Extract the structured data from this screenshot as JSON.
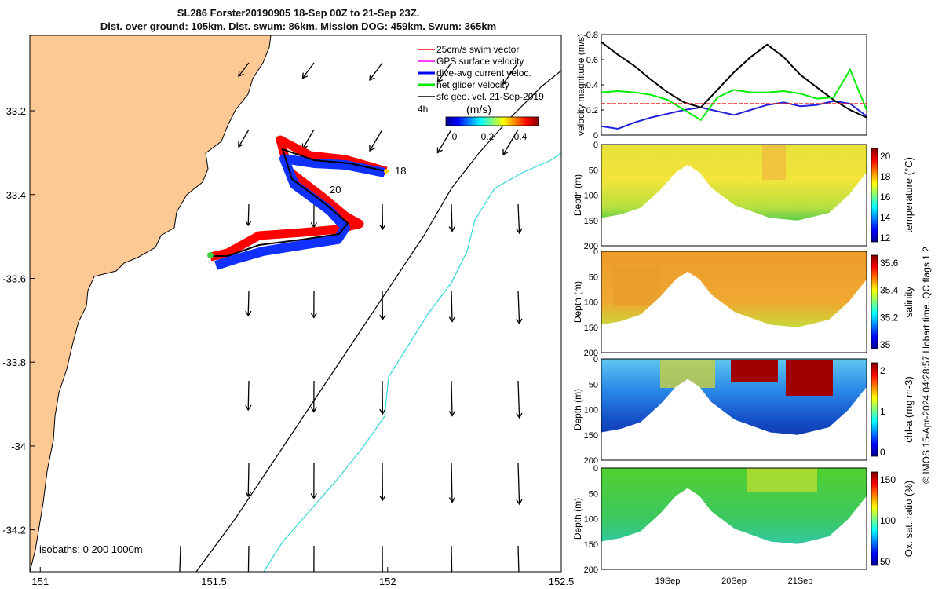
{
  "title": {
    "line1": "SL286 Forster20190905 18-Sep 00Z to 21-Sep 23Z.",
    "line2": "Dist. over ground: 105km. Dist. swum: 86km. Mission DOG: 459km. Swum: 365km"
  },
  "colors": {
    "land": "#fcc995",
    "coast": "#000000",
    "isobath_200": "#000000",
    "isobath_1000": "#33d6dc",
    "swim": "#ff0000",
    "gps": "#ff00ff",
    "current": "#0000ff",
    "net": "#00ee00",
    "track": "#000000"
  },
  "map": {
    "legend": [
      {
        "label": "25cm/s swim vector",
        "color": "#ff0000"
      },
      {
        "label": "GPS surface velocity",
        "color": "#ff00ff"
      },
      {
        "label": "dive-avg current veloc.",
        "color": "#0000ff"
      },
      {
        "label": "net glider velocity",
        "color": "#00ee00"
      },
      {
        "label": "sfc geo. vel. 21-Sep-2019",
        "color": "#000000"
      }
    ],
    "legend_extra": "4h",
    "colorbar_label": "(m/s)",
    "colorbar_ticks": [
      "0",
      "0.2",
      "0.4"
    ],
    "isobath_label": "isobaths: 0   200   1000m",
    "track_labels": [
      "18",
      "20"
    ],
    "xlim": [
      150.97,
      152.5
    ],
    "ylim": [
      -34.3,
      -33.02
    ]
  },
  "chart_data": [
    {
      "type": "scatter",
      "title": "map",
      "x_ticks": [
        151,
        151.5,
        152,
        152.5
      ],
      "x_tick_labels": [
        "151",
        "151.5",
        "152",
        "152.5"
      ],
      "y_ticks": [
        -33.2,
        -33.4,
        -33.6,
        -33.8,
        -34,
        -34.2
      ],
      "y_tick_labels": [
        "-33.2",
        "-33.4",
        "-33.6",
        "-33.8",
        "-34",
        "-34.2"
      ],
      "track": [
        [
          152.0,
          -33.34
        ],
        [
          151.92,
          -33.32
        ],
        [
          151.85,
          -33.31
        ],
        [
          151.78,
          -33.31
        ],
        [
          151.73,
          -33.32
        ],
        [
          151.76,
          -33.38
        ],
        [
          151.82,
          -33.43
        ],
        [
          151.9,
          -33.48
        ],
        [
          151.93,
          -33.5
        ],
        [
          151.85,
          -33.52
        ],
        [
          151.72,
          -33.53
        ],
        [
          151.6,
          -33.56
        ],
        [
          151.53,
          -33.56
        ]
      ]
    },
    {
      "type": "line",
      "title": "velocity",
      "ylabel": "velocity magnitude (m/s)",
      "ylim": [
        0,
        0.8
      ],
      "y_ticks": [
        "0",
        "0.2",
        "0.4",
        "0.6",
        "0.8"
      ],
      "x": [
        18.0,
        18.25,
        18.5,
        18.75,
        19.0,
        19.25,
        19.5,
        19.75,
        20.0,
        20.25,
        20.5,
        20.75,
        21.0,
        21.25,
        21.5,
        21.75,
        22.0
      ],
      "series": [
        {
          "name": "current",
          "color": "#2222dd",
          "values": [
            0.07,
            0.05,
            0.1,
            0.14,
            0.17,
            0.2,
            0.22,
            0.19,
            0.16,
            0.2,
            0.24,
            0.26,
            0.23,
            0.24,
            0.27,
            0.25,
            0.15
          ]
        },
        {
          "name": "geo",
          "color": "#000000",
          "values": [
            0.74,
            0.64,
            0.55,
            0.44,
            0.34,
            0.26,
            0.22,
            0.36,
            0.5,
            0.62,
            0.72,
            0.62,
            0.48,
            0.38,
            0.28,
            0.2,
            0.14
          ]
        },
        {
          "name": "net",
          "color": "#00ee00",
          "values": [
            0.34,
            0.35,
            0.34,
            0.32,
            0.28,
            0.2,
            0.12,
            0.3,
            0.36,
            0.34,
            0.34,
            0.35,
            0.33,
            0.29,
            0.3,
            0.52,
            0.2
          ]
        },
        {
          "name": "swim",
          "color": "#ee2222",
          "values": [
            0.25,
            0.25,
            0.25,
            0.25,
            0.25,
            0.25,
            0.25,
            0.25,
            0.25,
            0.25,
            0.25,
            0.25,
            0.25,
            0.25,
            0.25,
            0.25,
            0.25
          ]
        }
      ]
    },
    {
      "type": "heatmap",
      "title": "sections",
      "x_ticks": [
        "19Sep",
        "20Sep",
        "21Sep"
      ],
      "ylabel": "Depth (m)",
      "y_ticks": [
        "0",
        "50",
        "100",
        "150",
        "200"
      ],
      "panels": [
        {
          "id": "temperature",
          "cbar_label": "temperature (°C)",
          "cbar_ticks": [
            "12",
            "14",
            "16",
            "18",
            "20"
          ]
        },
        {
          "id": "salinity",
          "cbar_label": "salinity",
          "cbar_ticks": [
            "35",
            "35.2",
            "35.4",
            "35.6"
          ]
        },
        {
          "id": "chla",
          "cbar_label": "chl-a (mg m-3)",
          "cbar_ticks": [
            "0",
            "1",
            "2"
          ]
        },
        {
          "id": "oxygen",
          "cbar_label": "Ox. sat. ratio (%)",
          "cbar_ticks": [
            "50",
            "100",
            "150"
          ]
        }
      ]
    }
  ],
  "footer": "© IMOS 15-Apr-2024 04:28:57 Hobart time. QC flags 1  2"
}
